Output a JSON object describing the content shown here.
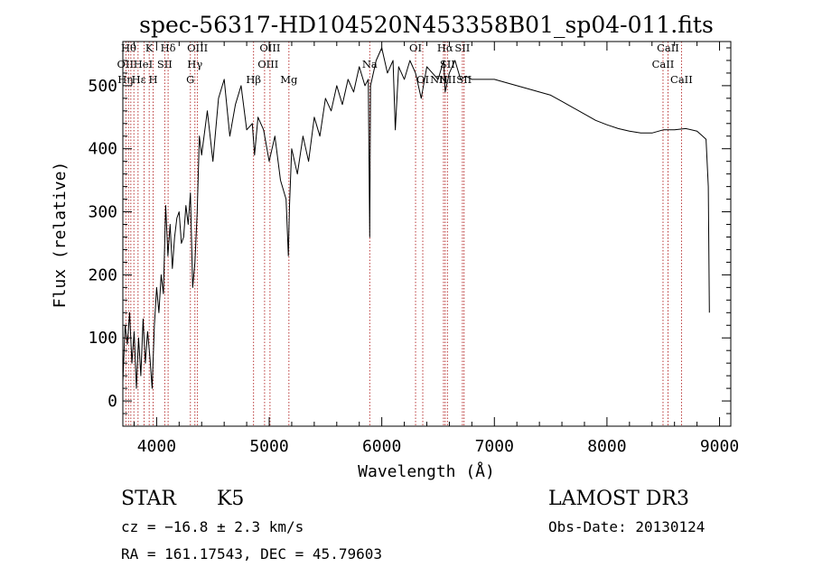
{
  "chart_data": {
    "type": "line",
    "title": "spec-56317-HD104520N453358B01_sp04-011.fits",
    "xlabel": "Wavelength (Å)",
    "ylabel": "Flux (relative)",
    "xlim": [
      3700,
      9100
    ],
    "ylim": [
      -40,
      570
    ],
    "xticks": [
      4000,
      5000,
      6000,
      7000,
      8000,
      9000
    ],
    "yticks": [
      0,
      100,
      200,
      300,
      400,
      500
    ],
    "grid": false,
    "series": [
      {
        "name": "spectrum",
        "x": [
          3700,
          3720,
          3740,
          3760,
          3780,
          3800,
          3820,
          3840,
          3860,
          3880,
          3900,
          3920,
          3940,
          3960,
          3980,
          4000,
          4020,
          4040,
          4060,
          4080,
          4100,
          4120,
          4140,
          4160,
          4180,
          4200,
          4220,
          4240,
          4260,
          4280,
          4300,
          4320,
          4340,
          4360,
          4380,
          4400,
          4450,
          4500,
          4550,
          4600,
          4650,
          4700,
          4750,
          4800,
          4850,
          4870,
          4900,
          4950,
          5000,
          5050,
          5100,
          5150,
          5170,
          5180,
          5200,
          5250,
          5300,
          5350,
          5400,
          5450,
          5500,
          5550,
          5600,
          5650,
          5700,
          5750,
          5800,
          5850,
          5880,
          5893,
          5900,
          5950,
          6000,
          6050,
          6100,
          6120,
          6150,
          6200,
          6250,
          6300,
          6350,
          6400,
          6450,
          6500,
          6550,
          6563,
          6600,
          6650,
          6700,
          6750,
          6800,
          6900,
          7000,
          7100,
          7200,
          7300,
          7400,
          7500,
          7600,
          7700,
          7800,
          7900,
          8000,
          8100,
          8200,
          8300,
          8400,
          8500,
          8600,
          8700,
          8800,
          8850,
          8880,
          8900,
          8910
        ],
        "values": [
          30,
          120,
          90,
          140,
          60,
          110,
          20,
          100,
          40,
          130,
          60,
          110,
          70,
          20,
          120,
          180,
          140,
          200,
          170,
          310,
          230,
          280,
          210,
          260,
          290,
          300,
          250,
          260,
          310,
          280,
          330,
          180,
          220,
          300,
          420,
          390,
          460,
          380,
          480,
          510,
          420,
          470,
          500,
          430,
          440,
          390,
          450,
          430,
          380,
          420,
          350,
          320,
          230,
          310,
          400,
          360,
          420,
          380,
          450,
          420,
          480,
          460,
          500,
          470,
          510,
          490,
          530,
          500,
          510,
          260,
          500,
          540,
          560,
          520,
          540,
          430,
          530,
          510,
          540,
          520,
          480,
          530,
          520,
          510,
          540,
          490,
          520,
          540,
          510,
          515,
          510,
          510,
          510,
          505,
          500,
          495,
          490,
          485,
          475,
          465,
          455,
          445,
          438,
          432,
          428,
          425,
          425,
          430,
          430,
          432,
          428,
          420,
          415,
          340,
          140
        ]
      }
    ],
    "annotations": [
      "Hθ",
      "OII",
      "Hη",
      "Hε",
      "K",
      "H",
      "HeI",
      "SII",
      "Hδ",
      "OIII",
      "Hγ",
      "G",
      "Hβ",
      "OIII",
      "OIII",
      "Mg",
      "Na",
      "OI",
      "OI",
      "Hα",
      "NII",
      "SII",
      "SII",
      "NII",
      "SII",
      "CaII",
      "CaII",
      "CaII"
    ],
    "info": {
      "class": "STAR",
      "subclass": "K5",
      "survey": "LAMOST DR3",
      "cz": "cz = −16.8 ± 2.3 km/s",
      "obsdate": "Obs-Date: 20130124",
      "radec": "RA = 161.17543, DEC =  45.79603"
    }
  }
}
